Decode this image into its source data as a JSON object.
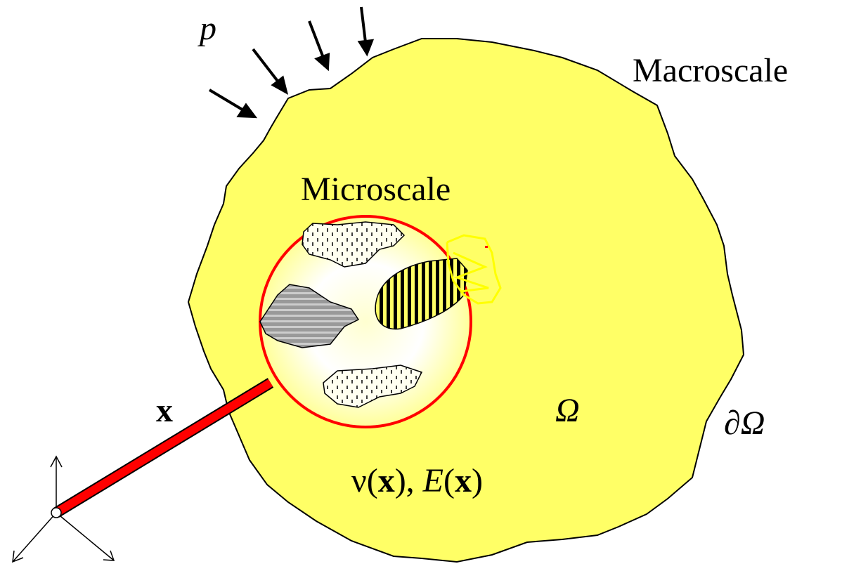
{
  "labels": {
    "load": "p",
    "macroscale": "Macroscale",
    "microscale": "Microscale",
    "position": "x",
    "domain": "Ω",
    "boundary": "∂Ω",
    "properties": [
      "ν(",
      "x",
      "), ",
      "E",
      "(",
      "x",
      ")"
    ]
  }
}
